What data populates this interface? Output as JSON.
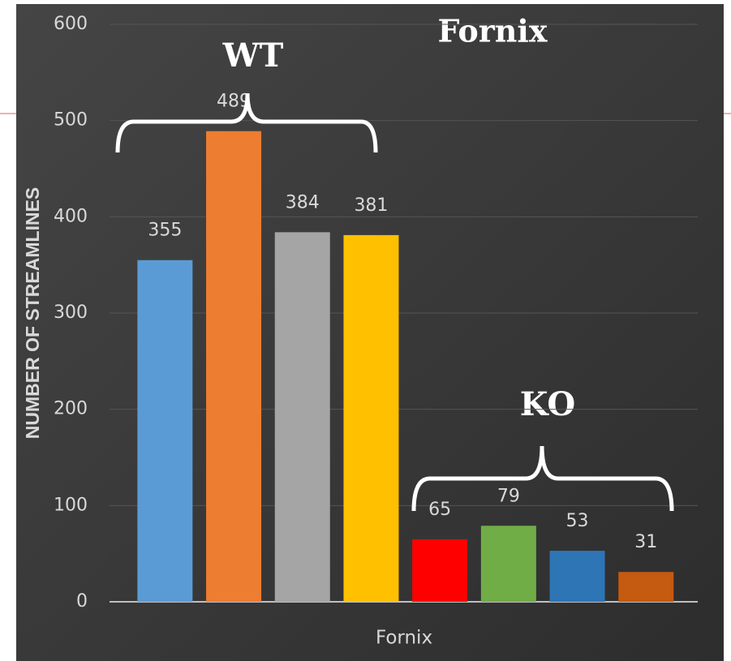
{
  "chart_data": {
    "type": "bar",
    "title": "Fornix",
    "annotations": [
      "WT",
      "KO"
    ],
    "y_label": "NUMBER OF STREAMLINES",
    "x_label": "Fornix",
    "categories": [
      null,
      null,
      null,
      null,
      null,
      null,
      null,
      null
    ],
    "values": [
      355,
      489,
      384,
      381,
      65,
      79,
      53,
      31
    ],
    "colors": [
      "#5b9bd5",
      "#ed7d31",
      "#a5a5a5",
      "#ffc000",
      "#ff0000",
      "#70ad47",
      "#2e75b6",
      "#c55a11"
    ],
    "ylim": [
      0,
      600
    ],
    "yticks": [
      0,
      100,
      200,
      300,
      400,
      500,
      600
    ],
    "grid": true
  }
}
